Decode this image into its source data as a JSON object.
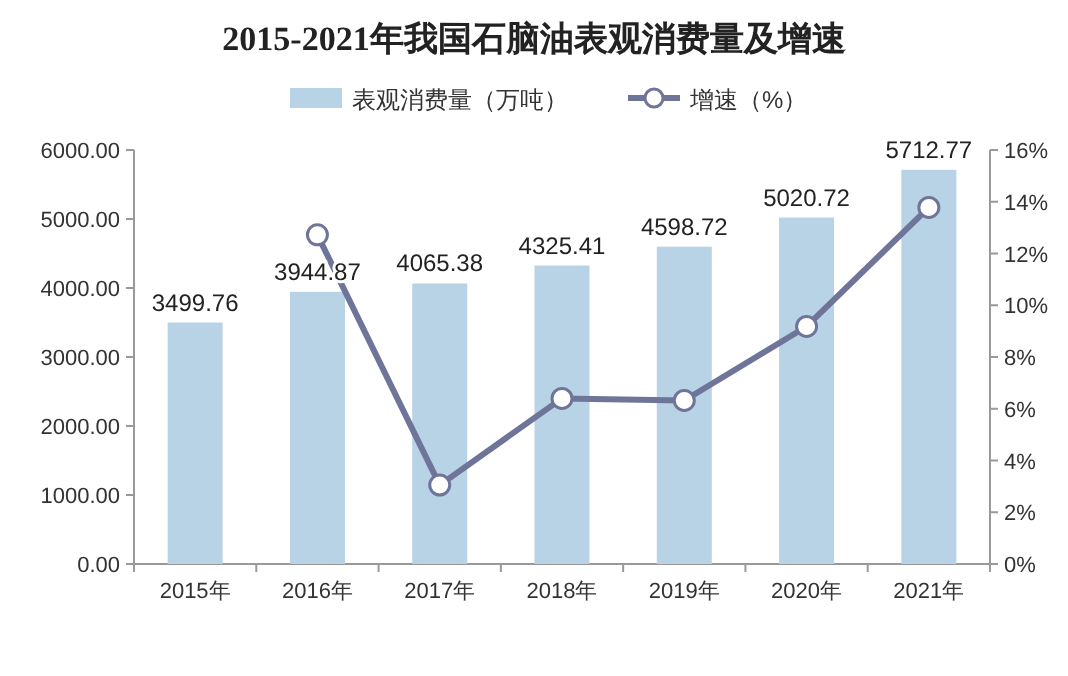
{
  "chart_data": {
    "type": "bar",
    "title": "2015-2021年我国石脑油表观消费量及增速",
    "categories": [
      "2015年",
      "2016年",
      "2017年",
      "2018年",
      "2019年",
      "2020年",
      "2021年"
    ],
    "series": [
      {
        "name": "表观消费量（万吨）",
        "color": "#b8d3e6",
        "values": [
          3499.76,
          3944.87,
          4065.38,
          4325.41,
          4598.72,
          5020.72,
          5712.77
        ],
        "value_labels": [
          "3499.76",
          "3944.87",
          "4065.38",
          "4325.41",
          "4598.72",
          "5020.72",
          "5712.77"
        ]
      },
      {
        "name": "增速（%）",
        "type": "line",
        "axis": "y2",
        "color": "#6f7599",
        "marker": "circle",
        "values": [
          null,
          12.72,
          3.05,
          6.4,
          6.32,
          9.18,
          13.78
        ]
      }
    ],
    "ylim": [
      0,
      6000
    ],
    "yticks": [
      {
        "value": 0,
        "label": "0.00"
      },
      {
        "value": 1000,
        "label": "1000.00"
      },
      {
        "value": 2000,
        "label": "2000.00"
      },
      {
        "value": 3000,
        "label": "3000.00"
      },
      {
        "value": 4000,
        "label": "4000.00"
      },
      {
        "value": 5000,
        "label": "5000.00"
      },
      {
        "value": 6000,
        "label": "6000.00"
      }
    ],
    "y2lim": [
      0,
      16
    ],
    "y2ticks": [
      {
        "value": 0,
        "label": "0%"
      },
      {
        "value": 2,
        "label": "2%"
      },
      {
        "value": 4,
        "label": "4%"
      },
      {
        "value": 6,
        "label": "6%"
      },
      {
        "value": 8,
        "label": "8%"
      },
      {
        "value": 10,
        "label": "10%"
      },
      {
        "value": 12,
        "label": "12%"
      },
      {
        "value": 14,
        "label": "14%"
      },
      {
        "value": 16,
        "label": "16%"
      }
    ],
    "legend": "top",
    "grid": false
  }
}
